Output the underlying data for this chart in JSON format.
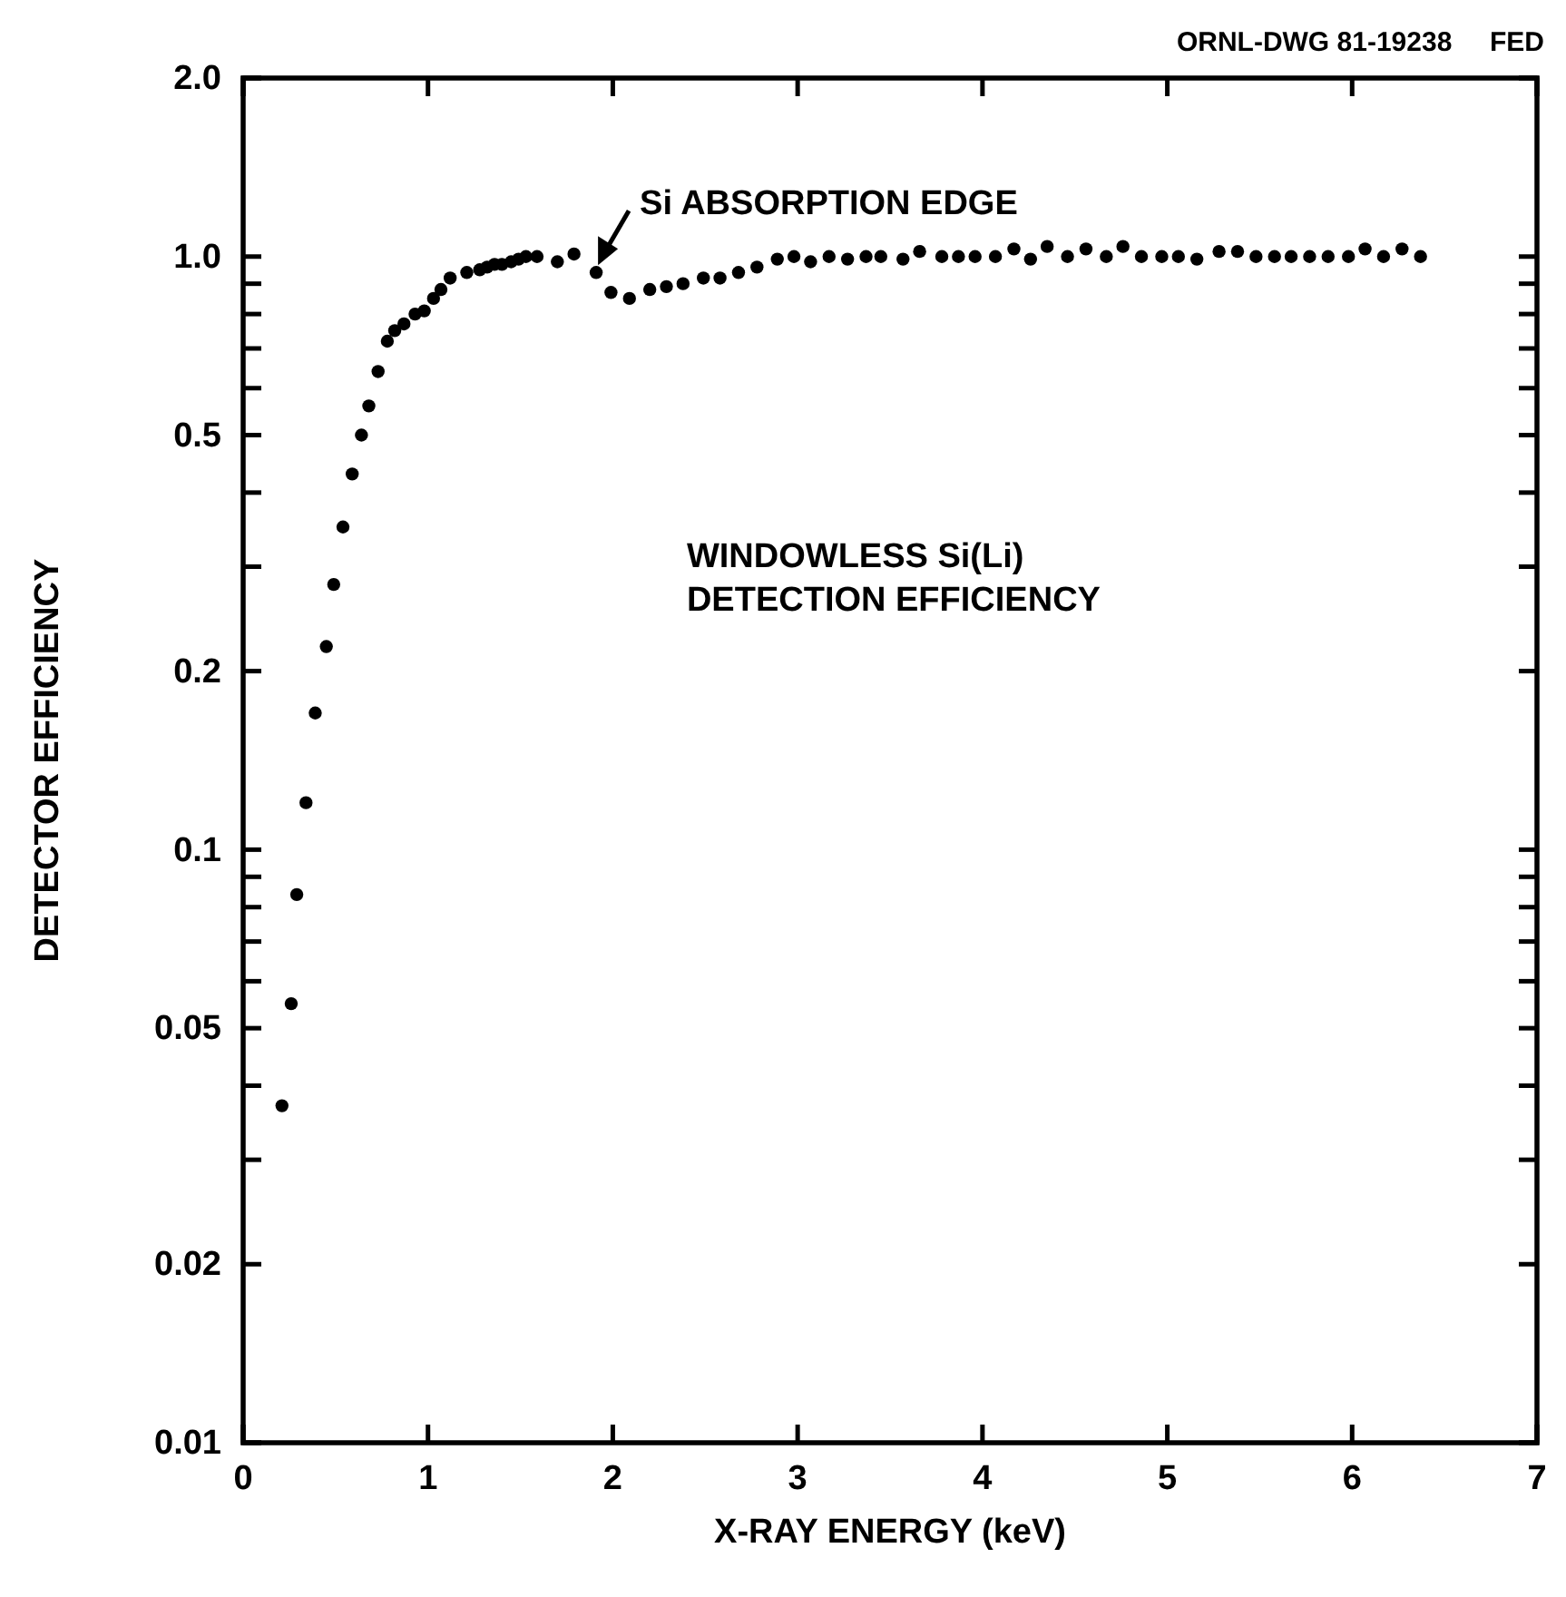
{
  "chart_data": {
    "type": "scatter",
    "xlabel": "X-RAY ENERGY (keV)",
    "ylabel": "DETECTOR EFFICIENCY",
    "annotations": [
      {
        "text": "Si ABSORPTION EDGE",
        "x": 1.91,
        "y": 0.94
      },
      "WINDOWLESS Si(Li)\nDETECTION EFFICIENCY",
      "ORNL-DWG 81-19238     FED"
    ],
    "log": "y",
    "marker": "circle",
    "grid": false,
    "xlim": [
      0,
      7
    ],
    "xticks": [
      0,
      1,
      2,
      3,
      4,
      5,
      6,
      7
    ],
    "ylim": [
      0.01,
      2
    ],
    "yticks": [
      {
        "value": 2,
        "label": "2.0"
      },
      {
        "value": 1,
        "label": "1.0"
      },
      {
        "value": 0.9,
        "label": null
      },
      {
        "value": 0.8,
        "label": null
      },
      {
        "value": 0.7,
        "label": null
      },
      {
        "value": 0.6,
        "label": null
      },
      0.5,
      {
        "value": 0.4,
        "label": null
      },
      {
        "value": 0.3,
        "label": null
      },
      0.2,
      {
        "value": 0.1,
        "label": "0.1"
      },
      {
        "value": 0.09,
        "label": null
      },
      {
        "value": 0.08,
        "label": null
      },
      {
        "value": 0.07,
        "label": null
      },
      {
        "value": 0.06,
        "label": null
      },
      0.05,
      {
        "value": 0.04,
        "label": null
      },
      {
        "value": 0.03,
        "label": null
      },
      0.02,
      0.01
    ],
    "series": [
      {
        "color": "#000000",
        "x": [
          0.21,
          0.26,
          0.29,
          0.34,
          0.39,
          0.45,
          0.49,
          0.54,
          0.59,
          0.64,
          0.68,
          0.73,
          0.78,
          0.82,
          0.87,
          0.93,
          0.98,
          1.03,
          1.07,
          1.12,
          1.21,
          1.28,
          1.32,
          1.36,
          1.4,
          1.45,
          1.49,
          1.53,
          1.59,
          1.7,
          1.79,
          1.91,
          1.99,
          2.09,
          2.2,
          2.29,
          2.38,
          2.49,
          2.58,
          2.68,
          2.78,
          2.89,
          2.98,
          3.07,
          3.17,
          3.27,
          3.37,
          3.45,
          3.57,
          3.66,
          3.78,
          3.87,
          3.96,
          4.07,
          4.17,
          4.26,
          4.35,
          4.46,
          4.56,
          4.67,
          4.76,
          4.86,
          4.97,
          5.06,
          5.16,
          5.28,
          5.38,
          5.48,
          5.58,
          5.67,
          5.77,
          5.87,
          5.98,
          6.07,
          6.17,
          6.27,
          6.37
        ],
        "values": [
          0.037,
          0.055,
          0.084,
          0.12,
          0.17,
          0.22,
          0.28,
          0.35,
          0.43,
          0.5,
          0.56,
          0.64,
          0.72,
          0.75,
          0.77,
          0.8,
          0.81,
          0.85,
          0.88,
          0.92,
          0.94,
          0.95,
          0.96,
          0.97,
          0.97,
          0.98,
          0.99,
          1.0,
          1.0,
          0.98,
          1.01,
          0.94,
          0.87,
          0.85,
          0.88,
          0.89,
          0.9,
          0.92,
          0.92,
          0.94,
          0.96,
          0.99,
          1.0,
          0.98,
          1.0,
          0.99,
          1.0,
          1.0,
          0.99,
          1.02,
          1.0,
          1.0,
          1.0,
          1.0,
          1.03,
          0.99,
          1.04,
          1.0,
          1.03,
          1.0,
          1.04,
          1.0,
          1.0,
          1.0,
          0.99,
          1.02,
          1.02,
          1.0,
          1.0,
          1.0,
          1.0,
          1.0,
          1.0,
          1.03,
          1.0,
          1.03,
          1.0
        ]
      }
    ]
  }
}
